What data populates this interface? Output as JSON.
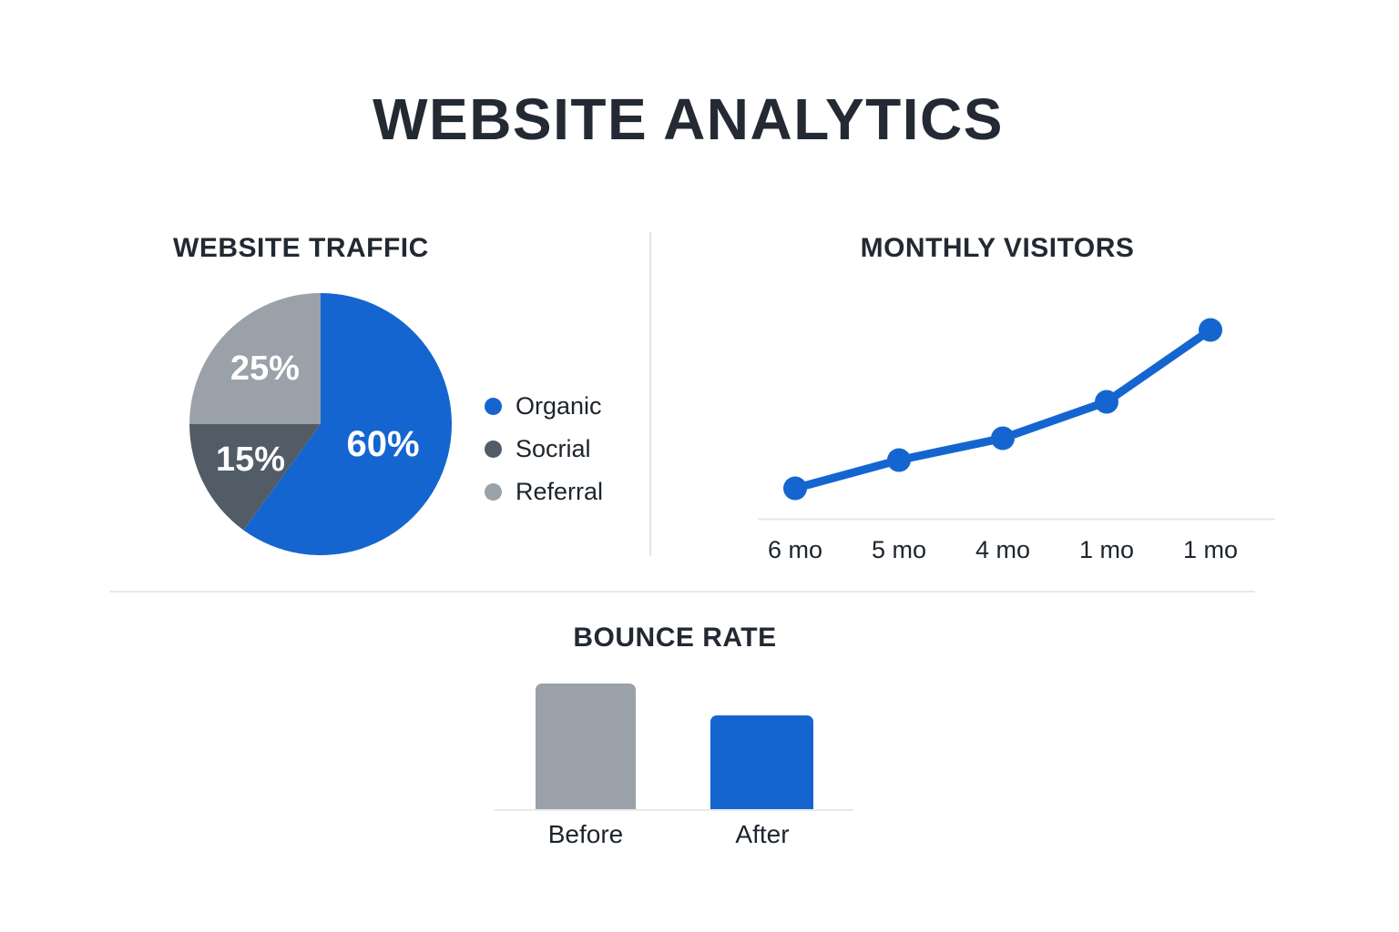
{
  "page": {
    "title": "WEBSITE ANALYTICS"
  },
  "colors": {
    "accent_blue": "#1565d1",
    "dark_gray": "#525c66",
    "light_gray": "#9ba1a8",
    "heading_text": "#232932",
    "pie_label_text": "#ffffff",
    "divider": "#e5e5e7",
    "axis_line": "#e9e9eb"
  },
  "chart_data": [
    {
      "id": "website-traffic",
      "type": "pie",
      "title": "WEBSITE TRAFFIC",
      "start_at": "top",
      "direction": "clockwise",
      "legend_position": "right",
      "slices": [
        {
          "label": "Organic",
          "value": 60,
          "display": "60%",
          "color": "#1565d1"
        },
        {
          "label": "Socrial",
          "value": 15,
          "display": "15%",
          "color": "#525c66"
        },
        {
          "label": "Referral",
          "value": 25,
          "display": "25%",
          "color": "#9ba1a8"
        }
      ]
    },
    {
      "id": "monthly-visitors",
      "type": "line",
      "title": "MONTHLY VISITORS",
      "categories": [
        "6 mo",
        "5 mo",
        "4 mo",
        "1 mo",
        "1 mo"
      ],
      "values": [
        34,
        65,
        89,
        129,
        208
      ],
      "units": "relative (no y-axis scale shown)",
      "ylim": [
        0,
        240
      ],
      "grid": false,
      "markers": true,
      "line_color": "#1565d1"
    },
    {
      "id": "bounce-rate",
      "type": "bar",
      "title": "BOUNCE RATE",
      "categories": [
        "Before",
        "After"
      ],
      "values": [
        138,
        103
      ],
      "units": "relative (no y-axis scale shown)",
      "ylim": [
        0,
        150
      ],
      "bar_colors": [
        "#9ba1a8",
        "#1565d1"
      ]
    }
  ]
}
